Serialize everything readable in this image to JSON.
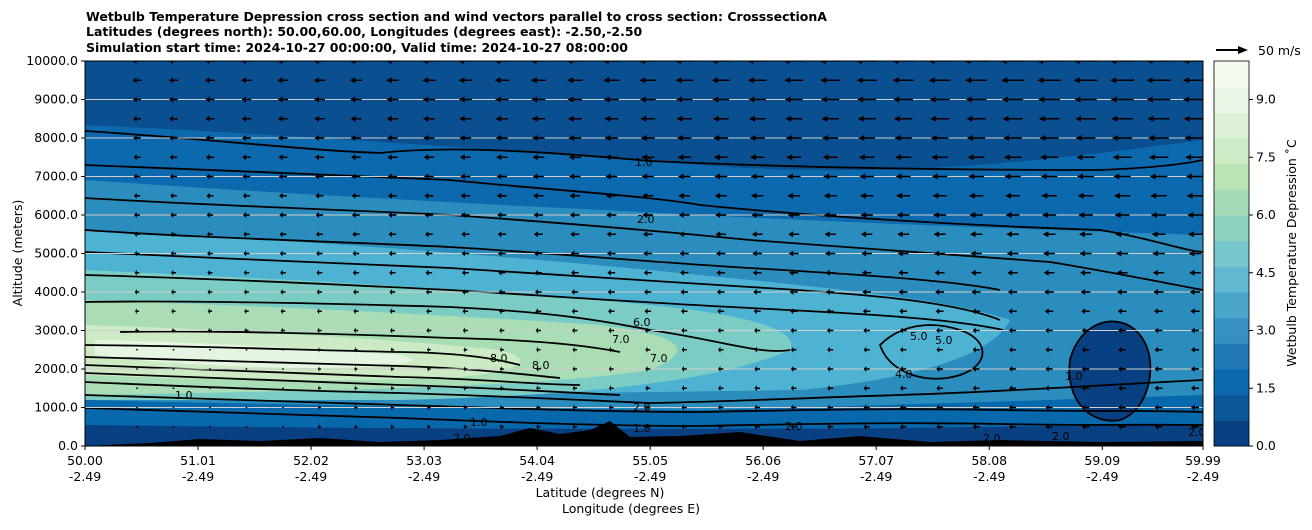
{
  "chart_data": {
    "type": "contour",
    "title_lines": [
      "Wetbulb Temperature Depression cross section and wind vectors parallel to cross section: CrosssectionA",
      "Latitudes (degrees north): 50.00,60.00, Longitudes (degrees east): -2.50,-2.50",
      "Simulation start time: 2024-10-27 00:00:00, Valid time: 2024-10-27 08:00:00"
    ],
    "xlabel": "Latitude (degrees N)",
    "xlabel2": "Longitude (degrees E)",
    "ylabel": "Altitude (meters)",
    "x_ticks": [
      {
        "lat": "50.00",
        "lon": "-2.49"
      },
      {
        "lat": "51.01",
        "lon": "-2.49"
      },
      {
        "lat": "52.02",
        "lon": "-2.49"
      },
      {
        "lat": "53.03",
        "lon": "-2.49"
      },
      {
        "lat": "54.04",
        "lon": "-2.49"
      },
      {
        "lat": "55.05",
        "lon": "-2.49"
      },
      {
        "lat": "56.06",
        "lon": "-2.49"
      },
      {
        "lat": "57.07",
        "lon": "-2.49"
      },
      {
        "lat": "58.08",
        "lon": "-2.49"
      },
      {
        "lat": "59.09",
        "lon": "-2.49"
      },
      {
        "lat": "59.99",
        "lon": "-2.49"
      }
    ],
    "y_ticks": [
      "0.0",
      "1000.0",
      "2000.0",
      "3000.0",
      "4000.0",
      "5000.0",
      "6000.0",
      "7000.0",
      "8000.0",
      "9000.0",
      "10000.0"
    ],
    "ylim": [
      0,
      10000
    ],
    "xlim": [
      50.0,
      59.99
    ],
    "colorbar": {
      "label": "Wetbulb Temperature Depression ˚C",
      "ticks": [
        "0.0",
        "1.5",
        "3.0",
        "4.5",
        "6.0",
        "7.5",
        "9.0"
      ],
      "range": [
        0,
        10
      ],
      "colors": [
        "#084081",
        "#0a5699",
        "#0d69ad",
        "#2079b6",
        "#3591c2",
        "#4aa5cb",
        "#60b8d1",
        "#76c7cc",
        "#8dd1c0",
        "#a4dbb6",
        "#bbe4b5",
        "#cdebc5",
        "#dcf1d5",
        "#eaf7e6",
        "#f5fbf0"
      ]
    },
    "wind_reference": {
      "label": "50 m/s"
    },
    "contour_labels": [
      "1.0",
      "2.0",
      "6.0",
      "7.0",
      "8.0",
      "8.0",
      "7.0",
      "5.0",
      "5.0",
      "4.0",
      "2.0",
      "1.0",
      "1.0",
      "2.0",
      "1.0",
      "2.0",
      "1.0",
      "2.0",
      "2.0",
      "2.0"
    ],
    "grid": "horizontal"
  }
}
